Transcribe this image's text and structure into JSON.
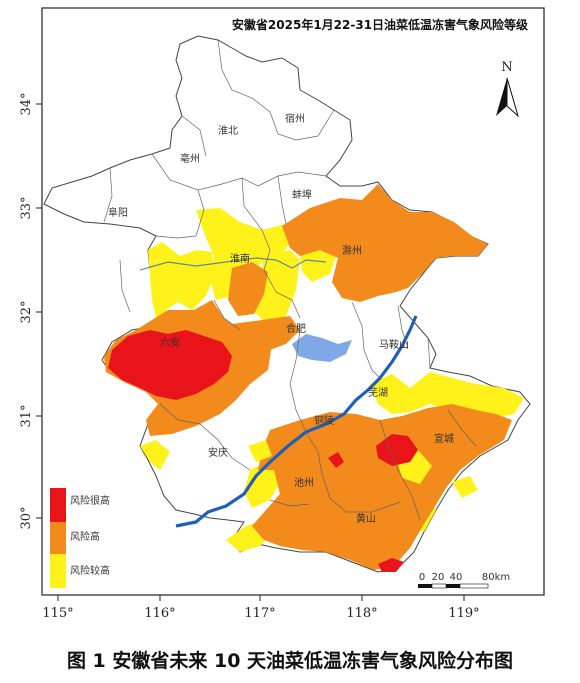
{
  "map_title": "安徽省2025年1月22-31日油菜低温冻害气象风险等级",
  "caption": "图 1  安徽省未来 10 天油菜低温冻害气象风险分布图",
  "north_label": "N",
  "x_ticks": [
    "115°",
    "116°",
    "117°",
    "118°",
    "119°"
  ],
  "y_ticks": [
    "34°",
    "33°",
    "32°",
    "31°",
    "30°"
  ],
  "scale_labels": [
    "0",
    "20",
    "40",
    "80km"
  ],
  "legend": [
    {
      "label": "风险很高",
      "color": "#e8141a"
    },
    {
      "label": "风险高",
      "color": "#f28a1c"
    },
    {
      "label": "风险较高",
      "color": "#fff21a"
    }
  ],
  "cities": {
    "huaibei": "淮北",
    "suzhou": "宿州",
    "bozhou": "亳州",
    "bengbu": "蚌埠",
    "fuyang": "阜阳",
    "huainan": "淮南",
    "chuzhou": "滁州",
    "luan": "六安",
    "hefei": "合肥",
    "maanshan": "马鞍山",
    "wuhu": "芜湖",
    "tongling": "铜陵",
    "xuancheng": "宣城",
    "anqing": "安庆",
    "chizhou": "池州",
    "huangshan": "黄山"
  },
  "colors": {
    "very_high": "#e8141a",
    "high": "#f28a1c",
    "higher": "#fff21a",
    "water": "#7fa9e6",
    "river": "#1f5fb8",
    "border": "#555555"
  }
}
